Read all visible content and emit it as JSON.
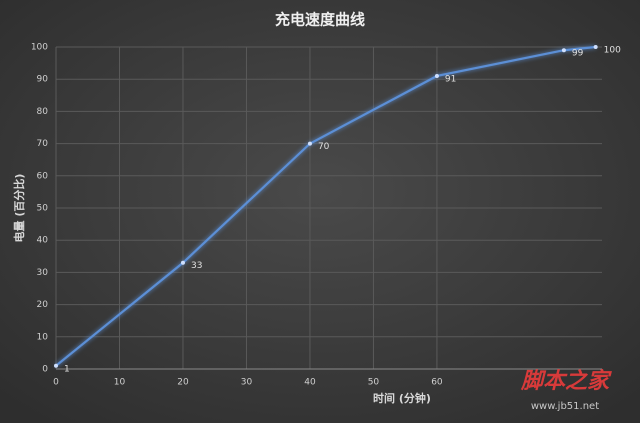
{
  "chart_data": {
    "type": "line",
    "title": "充电速度曲线",
    "x_label": "时间 (分钟)",
    "y_label": "电量 (百分比)",
    "x": [
      0,
      20,
      40,
      60,
      80,
      85
    ],
    "series": [
      {
        "name": "电量",
        "color": "#5b8fd6",
        "values": [
          1,
          33,
          70,
          91,
          99,
          100
        ]
      }
    ],
    "xlim": [
      0,
      86
    ],
    "xticks": [
      0,
      10,
      20,
      30,
      40,
      50,
      60
    ],
    "ylim": [
      0,
      100
    ],
    "yticks": [
      0,
      10,
      20,
      30,
      40,
      50,
      60,
      70,
      80,
      90,
      100
    ],
    "grid": true,
    "legend": false
  },
  "watermark": {
    "brand": "脚本之家",
    "url": "www.jb51.net"
  }
}
